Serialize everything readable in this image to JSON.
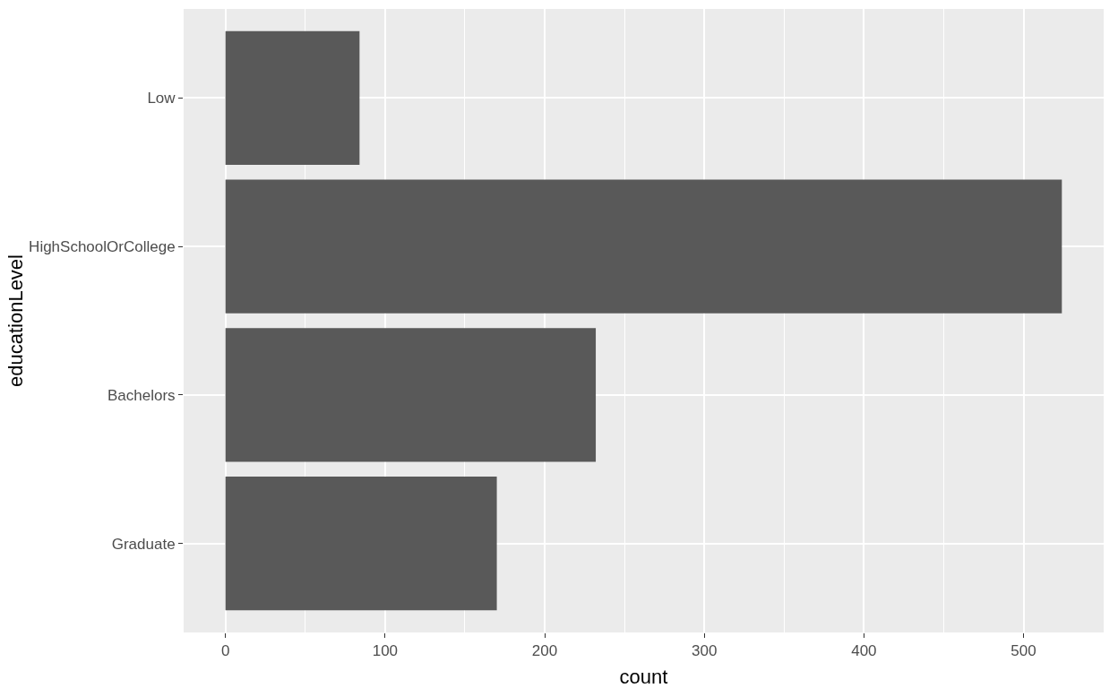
{
  "chart_data": {
    "type": "bar",
    "orientation": "horizontal",
    "xlabel": "count",
    "ylabel": "educationLevel",
    "categories": [
      "Low",
      "HighSchoolOrCollege",
      "Bachelors",
      "Graduate"
    ],
    "values": [
      84,
      524,
      232,
      170
    ],
    "color": "#595959",
    "xlim": [
      -26.2,
      550.2
    ],
    "xticks": [
      0,
      100,
      200,
      300,
      400,
      500
    ],
    "grid": true
  }
}
